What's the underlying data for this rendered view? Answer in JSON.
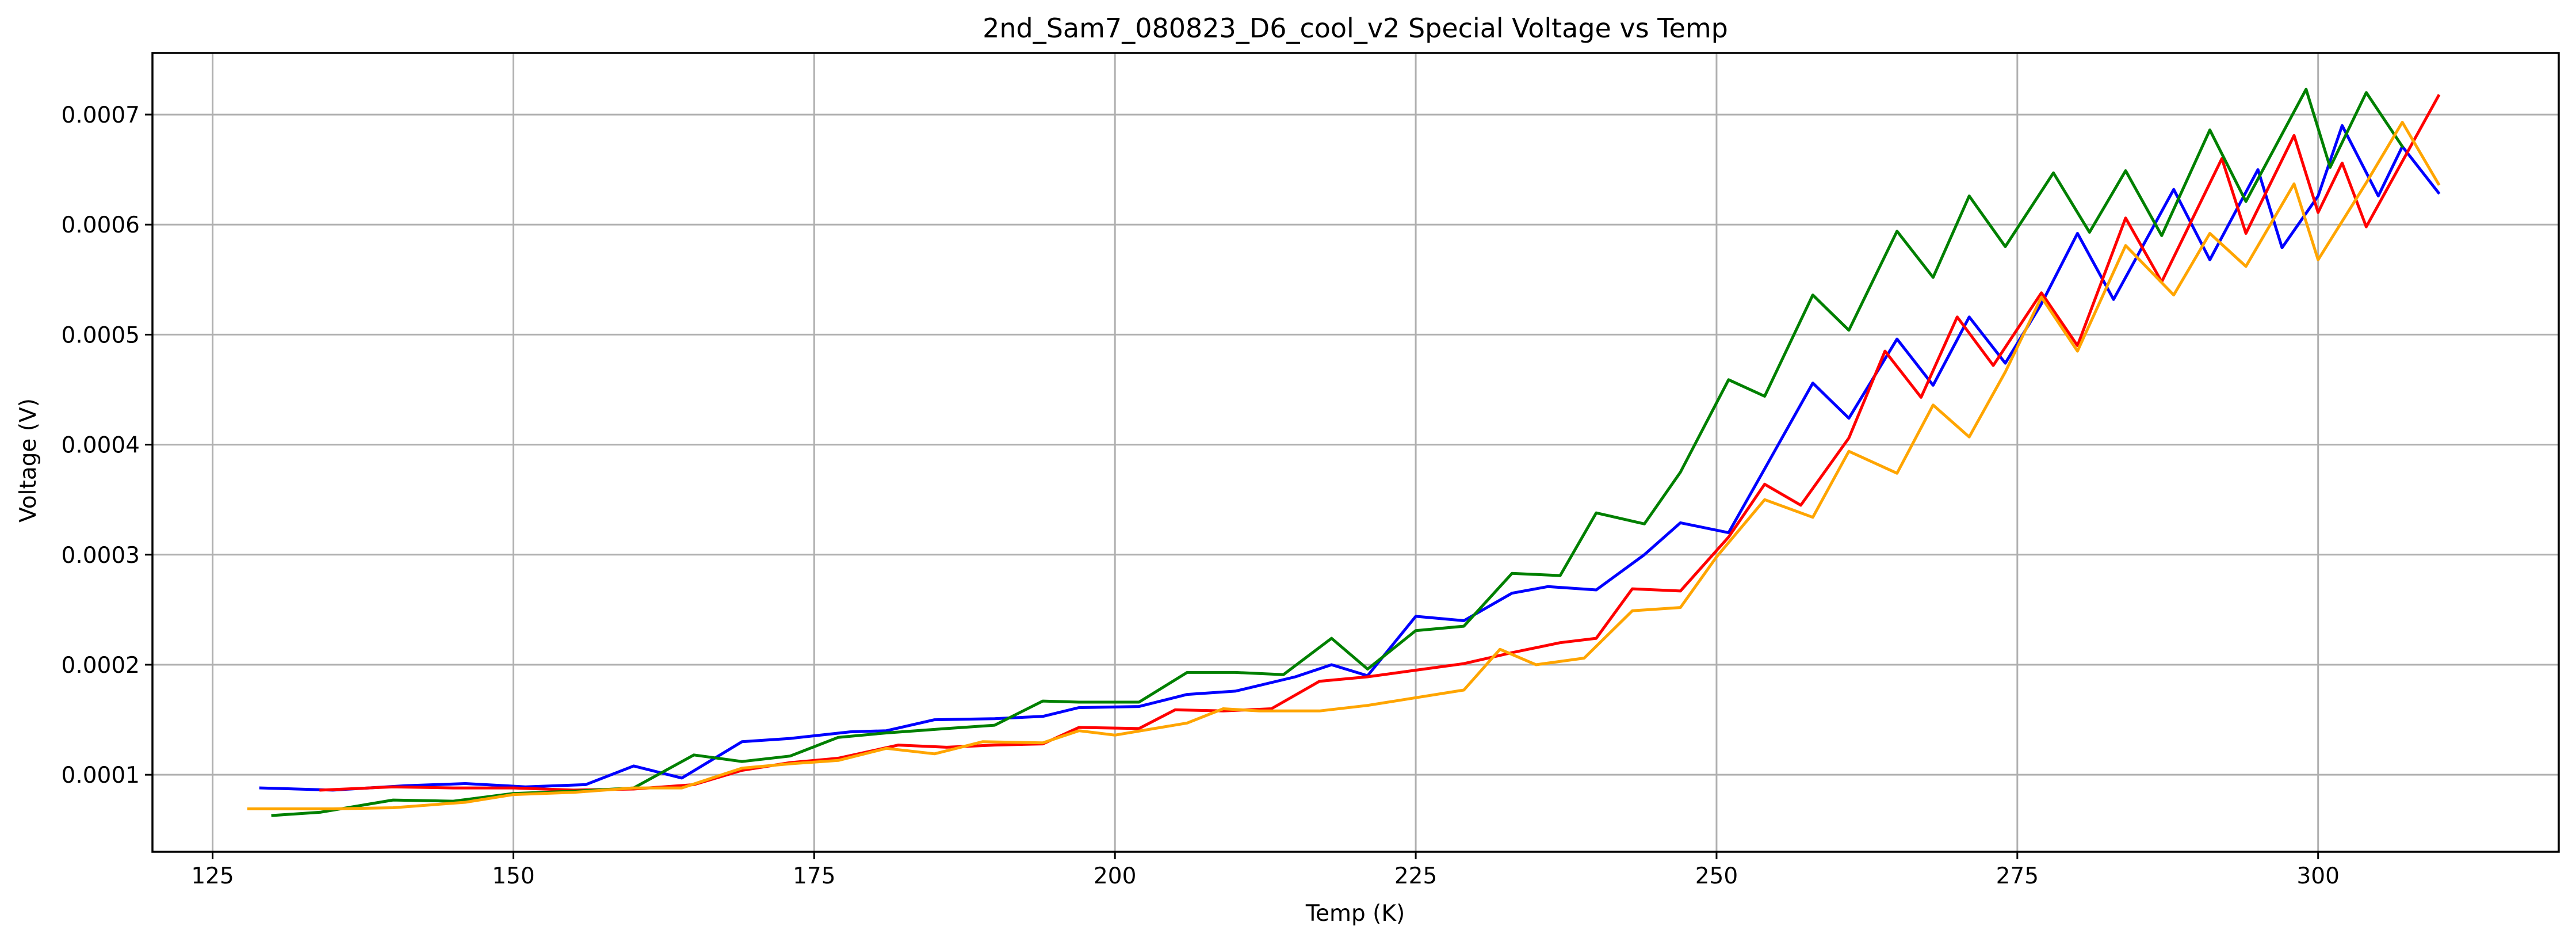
{
  "chart_data": {
    "type": "line",
    "title": "2nd_Sam7_080823_D6_cool_v2 Special Voltage vs Temp",
    "xlabel": "Temp (K)",
    "ylabel": "Voltage (V)",
    "xlim": [
      120,
      320
    ],
    "ylim": [
      3e-05,
      0.000756
    ],
    "xticks": [
      125,
      150,
      175,
      200,
      225,
      250,
      275,
      300
    ],
    "yticks": [
      0.0001,
      0.0002,
      0.0003,
      0.0004,
      0.0005,
      0.0006,
      0.0007
    ],
    "xtick_labels": [
      "125",
      "150",
      "175",
      "200",
      "225",
      "250",
      "275",
      "300"
    ],
    "ytick_labels": [
      "0.0001",
      "0.0002",
      "0.0003",
      "0.0004",
      "0.0005",
      "0.0006",
      "0.0007"
    ],
    "grid": true,
    "legend": "none",
    "series": [
      {
        "color": "#0000ff",
        "points": [
          [
            129,
            8.8e-05
          ],
          [
            135,
            8.6e-05
          ],
          [
            141,
            9e-05
          ],
          [
            146,
            9.2e-05
          ],
          [
            151,
            8.9e-05
          ],
          [
            156,
            9.1e-05
          ],
          [
            160,
            0.000108
          ],
          [
            164,
            9.7e-05
          ],
          [
            169,
            0.00013
          ],
          [
            173,
            0.000133
          ],
          [
            178,
            0.000139
          ],
          [
            181,
            0.00014
          ],
          [
            185,
            0.00015
          ],
          [
            190,
            0.000151
          ],
          [
            194,
            0.000153
          ],
          [
            197,
            0.000161
          ],
          [
            202,
            0.000162
          ],
          [
            206,
            0.000173
          ],
          [
            210,
            0.000176
          ],
          [
            215,
            0.000189
          ],
          [
            218,
            0.0002
          ],
          [
            221,
            0.00019
          ],
          [
            225,
            0.000244
          ],
          [
            229,
            0.00024
          ],
          [
            233,
            0.000265
          ],
          [
            236,
            0.000271
          ],
          [
            240,
            0.000268
          ],
          [
            244,
            0.0003
          ],
          [
            247,
            0.000329
          ],
          [
            251,
            0.00032
          ],
          [
            254,
            0.000378
          ],
          [
            258,
            0.000456
          ],
          [
            261,
            0.000424
          ],
          [
            265,
            0.000496
          ],
          [
            268,
            0.000454
          ],
          [
            271,
            0.000516
          ],
          [
            274,
            0.000474
          ],
          [
            277,
            0.000528
          ],
          [
            280,
            0.000592
          ],
          [
            283,
            0.000532
          ],
          [
            288,
            0.000632
          ],
          [
            291,
            0.000568
          ],
          [
            295,
            0.00065
          ],
          [
            297,
            0.000579
          ],
          [
            300,
            0.000626
          ],
          [
            302,
            0.00069
          ],
          [
            305,
            0.000626
          ],
          [
            307,
            0.000671
          ],
          [
            310,
            0.000629
          ]
        ]
      },
      {
        "color": "#ff0000",
        "points": [
          [
            134,
            8.6e-05
          ],
          [
            140,
            8.9e-05
          ],
          [
            145,
            8.8e-05
          ],
          [
            150,
            8.8e-05
          ],
          [
            155,
            8.6e-05
          ],
          [
            160,
            8.7e-05
          ],
          [
            165,
            9.1e-05
          ],
          [
            169,
            0.000104
          ],
          [
            173,
            0.000111
          ],
          [
            177,
            0.000115
          ],
          [
            182,
            0.000127
          ],
          [
            186,
            0.000125
          ],
          [
            190,
            0.000127
          ],
          [
            194,
            0.000128
          ],
          [
            197,
            0.000143
          ],
          [
            202,
            0.000142
          ],
          [
            205,
            0.000159
          ],
          [
            209,
            0.000158
          ],
          [
            213,
            0.00016
          ],
          [
            217,
            0.000185
          ],
          [
            221,
            0.000189
          ],
          [
            225,
            0.000195
          ],
          [
            229,
            0.000201
          ],
          [
            233,
            0.000211
          ],
          [
            237,
            0.00022
          ],
          [
            240,
            0.000224
          ],
          [
            243,
            0.000269
          ],
          [
            247,
            0.000267
          ],
          [
            251,
            0.000316
          ],
          [
            254,
            0.000364
          ],
          [
            257,
            0.000345
          ],
          [
            261,
            0.000406
          ],
          [
            264,
            0.000485
          ],
          [
            267,
            0.000443
          ],
          [
            270,
            0.000516
          ],
          [
            273,
            0.000472
          ],
          [
            277,
            0.000538
          ],
          [
            280,
            0.00049
          ],
          [
            284,
            0.000606
          ],
          [
            287,
            0.000548
          ],
          [
            292,
            0.00066
          ],
          [
            294,
            0.000592
          ],
          [
            298,
            0.000681
          ],
          [
            300,
            0.000611
          ],
          [
            302,
            0.000656
          ],
          [
            304,
            0.000598
          ],
          [
            310,
            0.000717
          ]
        ]
      },
      {
        "color": "#008000",
        "points": [
          [
            130,
            6.3e-05
          ],
          [
            134,
            6.6e-05
          ],
          [
            140,
            7.7e-05
          ],
          [
            145,
            7.6e-05
          ],
          [
            150,
            8.3e-05
          ],
          [
            155,
            8.5e-05
          ],
          [
            160,
            8.8e-05
          ],
          [
            165,
            0.000118
          ],
          [
            169,
            0.000112
          ],
          [
            173,
            0.000117
          ],
          [
            177,
            0.000134
          ],
          [
            181,
            0.000138
          ],
          [
            186,
            0.000142
          ],
          [
            190,
            0.000145
          ],
          [
            194,
            0.000167
          ],
          [
            197,
            0.000166
          ],
          [
            202,
            0.000166
          ],
          [
            206,
            0.000193
          ],
          [
            210,
            0.000193
          ],
          [
            214,
            0.000191
          ],
          [
            218,
            0.000224
          ],
          [
            221,
            0.000196
          ],
          [
            225,
            0.000231
          ],
          [
            229,
            0.000235
          ],
          [
            233,
            0.000283
          ],
          [
            237,
            0.000281
          ],
          [
            240,
            0.000338
          ],
          [
            244,
            0.000328
          ],
          [
            247,
            0.000375
          ],
          [
            251,
            0.000459
          ],
          [
            254,
            0.000444
          ],
          [
            258,
            0.000536
          ],
          [
            261,
            0.000504
          ],
          [
            265,
            0.000594
          ],
          [
            268,
            0.000552
          ],
          [
            271,
            0.000626
          ],
          [
            274,
            0.00058
          ],
          [
            278,
            0.000647
          ],
          [
            281,
            0.000593
          ],
          [
            284,
            0.000649
          ],
          [
            287,
            0.00059
          ],
          [
            291,
            0.000686
          ],
          [
            294,
            0.000621
          ],
          [
            299,
            0.000723
          ],
          [
            301,
            0.000652
          ],
          [
            304,
            0.00072
          ],
          [
            307,
            0.000671
          ]
        ]
      },
      {
        "color": "#ffa500",
        "points": [
          [
            128,
            6.9e-05
          ],
          [
            135,
            6.9e-05
          ],
          [
            140,
            7e-05
          ],
          [
            146,
            7.5e-05
          ],
          [
            150,
            8.2e-05
          ],
          [
            155,
            8.4e-05
          ],
          [
            160,
            8.8e-05
          ],
          [
            164,
            8.8e-05
          ],
          [
            169,
            0.000106
          ],
          [
            173,
            0.00011
          ],
          [
            177,
            0.000113
          ],
          [
            181,
            0.000124
          ],
          [
            185,
            0.000119
          ],
          [
            189,
            0.00013
          ],
          [
            194,
            0.000129
          ],
          [
            197,
            0.00014
          ],
          [
            200,
            0.000136
          ],
          [
            206,
            0.000147
          ],
          [
            209,
            0.00016
          ],
          [
            212,
            0.000158
          ],
          [
            217,
            0.000158
          ],
          [
            221,
            0.000163
          ],
          [
            225,
            0.00017
          ],
          [
            229,
            0.000177
          ],
          [
            232,
            0.000214
          ],
          [
            235,
            0.0002
          ],
          [
            239,
            0.000206
          ],
          [
            243,
            0.000249
          ],
          [
            247,
            0.000252
          ],
          [
            250,
            0.000298
          ],
          [
            254,
            0.00035
          ],
          [
            258,
            0.000334
          ],
          [
            261,
            0.000394
          ],
          [
            265,
            0.000374
          ],
          [
            268,
            0.000436
          ],
          [
            271,
            0.000407
          ],
          [
            274,
            0.000466
          ],
          [
            277,
            0.000534
          ],
          [
            280,
            0.000485
          ],
          [
            284,
            0.000581
          ],
          [
            288,
            0.000536
          ],
          [
            291,
            0.000592
          ],
          [
            294,
            0.000562
          ],
          [
            298,
            0.000637
          ],
          [
            300,
            0.000568
          ],
          [
            304,
            0.000638
          ],
          [
            307,
            0.000693
          ],
          [
            310,
            0.000637
          ]
        ]
      }
    ]
  }
}
